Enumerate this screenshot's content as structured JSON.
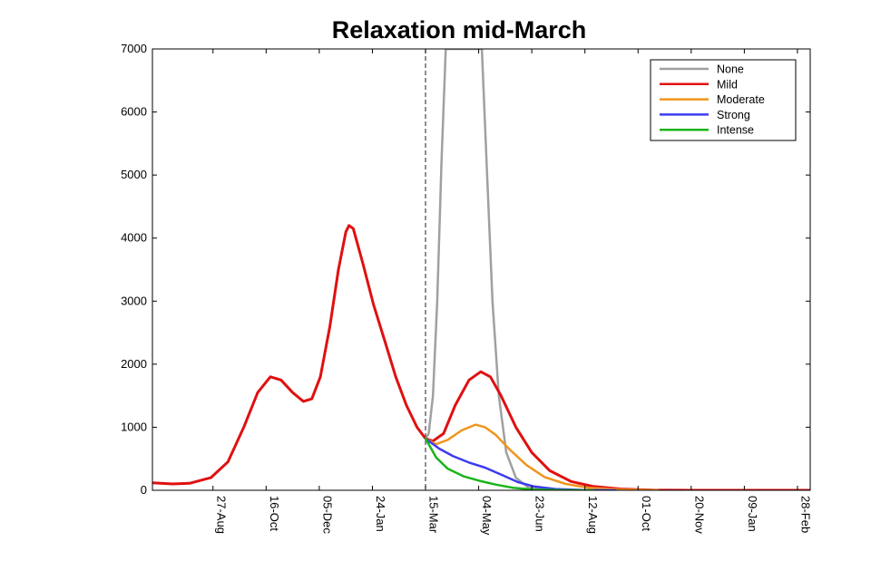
{
  "chart_data": {
    "type": "line",
    "title": "Relaxation mid-March",
    "xlabel": "",
    "ylabel": "",
    "ylim": [
      0,
      7000
    ],
    "yticks": [
      0,
      1000,
      2000,
      3000,
      4000,
      5000,
      6000,
      7000
    ],
    "xlim": [
      "2020-07-01",
      "2022-03-12"
    ],
    "xticks": [
      {
        "label": "27-Aug",
        "date": "2020-08-27"
      },
      {
        "label": "16-Oct",
        "date": "2020-10-16"
      },
      {
        "label": "05-Dec",
        "date": "2020-12-05"
      },
      {
        "label": "24-Jan",
        "date": "2021-01-24"
      },
      {
        "label": "15-Mar",
        "date": "2021-03-15"
      },
      {
        "label": "04-May",
        "date": "2021-05-04"
      },
      {
        "label": "23-Jun",
        "date": "2021-06-23"
      },
      {
        "label": "12-Aug",
        "date": "2021-08-12"
      },
      {
        "label": "01-Oct",
        "date": "2021-10-01"
      },
      {
        "label": "20-Nov",
        "date": "2021-11-20"
      },
      {
        "label": "09-Jan",
        "date": "2022-01-09"
      },
      {
        "label": "28-Feb",
        "date": "2022-02-28"
      }
    ],
    "vline": {
      "date": "2021-03-15",
      "style": "dashed"
    },
    "grid": false,
    "legend_position": "top-right",
    "series": [
      {
        "name": "None",
        "color": "#a0a0a0",
        "points": [
          [
            "2021-03-15",
            820
          ],
          [
            "2021-03-18",
            900
          ],
          [
            "2021-03-22",
            1500
          ],
          [
            "2021-03-26",
            3000
          ],
          [
            "2021-03-30",
            5200
          ],
          [
            "2021-04-03",
            7000
          ],
          [
            "2021-05-07",
            7000
          ],
          [
            "2021-05-12",
            5000
          ],
          [
            "2021-05-17",
            3000
          ],
          [
            "2021-05-23",
            1500
          ],
          [
            "2021-05-30",
            600
          ],
          [
            "2021-06-08",
            200
          ],
          [
            "2021-06-20",
            40
          ],
          [
            "2021-07-10",
            5
          ]
        ]
      },
      {
        "name": "Mild",
        "color": "#e01010",
        "points": [
          [
            "2020-07-01",
            120
          ],
          [
            "2020-07-20",
            100
          ],
          [
            "2020-08-05",
            110
          ],
          [
            "2020-08-25",
            200
          ],
          [
            "2020-09-10",
            450
          ],
          [
            "2020-09-25",
            1000
          ],
          [
            "2020-10-08",
            1550
          ],
          [
            "2020-10-20",
            1800
          ],
          [
            "2020-10-30",
            1750
          ],
          [
            "2020-11-10",
            1550
          ],
          [
            "2020-11-20",
            1410
          ],
          [
            "2020-11-28",
            1450
          ],
          [
            "2020-12-06",
            1800
          ],
          [
            "2020-12-15",
            2600
          ],
          [
            "2020-12-23",
            3500
          ],
          [
            "2020-12-30",
            4100
          ],
          [
            "2021-01-02",
            4200
          ],
          [
            "2021-01-06",
            4150
          ],
          [
            "2021-01-15",
            3600
          ],
          [
            "2021-01-25",
            2950
          ],
          [
            "2021-02-05",
            2350
          ],
          [
            "2021-02-15",
            1800
          ],
          [
            "2021-02-25",
            1350
          ],
          [
            "2021-03-07",
            1000
          ],
          [
            "2021-03-15",
            820
          ],
          [
            "2021-03-22",
            780
          ],
          [
            "2021-04-01",
            900
          ],
          [
            "2021-04-12",
            1350
          ],
          [
            "2021-04-25",
            1750
          ],
          [
            "2021-05-06",
            1880
          ],
          [
            "2021-05-15",
            1800
          ],
          [
            "2021-05-25",
            1500
          ],
          [
            "2021-06-08",
            1000
          ],
          [
            "2021-06-23",
            600
          ],
          [
            "2021-07-10",
            310
          ],
          [
            "2021-07-30",
            140
          ],
          [
            "2021-08-20",
            60
          ],
          [
            "2021-09-15",
            20
          ],
          [
            "2021-10-15",
            5
          ],
          [
            "2021-11-20",
            0
          ],
          [
            "2022-03-12",
            0
          ]
        ]
      },
      {
        "name": "Moderate",
        "color": "#f0951e",
        "points": [
          [
            "2021-03-15",
            820
          ],
          [
            "2021-03-25",
            730
          ],
          [
            "2021-04-05",
            800
          ],
          [
            "2021-04-18",
            950
          ],
          [
            "2021-05-01",
            1040
          ],
          [
            "2021-05-10",
            1000
          ],
          [
            "2021-05-20",
            880
          ],
          [
            "2021-06-02",
            650
          ],
          [
            "2021-06-18",
            400
          ],
          [
            "2021-07-05",
            210
          ],
          [
            "2021-07-25",
            100
          ],
          [
            "2021-08-15",
            40
          ],
          [
            "2021-09-15",
            10
          ],
          [
            "2021-10-20",
            0
          ]
        ]
      },
      {
        "name": "Strong",
        "color": "#3c3cf0",
        "points": [
          [
            "2021-03-15",
            820
          ],
          [
            "2021-03-28",
            660
          ],
          [
            "2021-04-10",
            540
          ],
          [
            "2021-04-25",
            440
          ],
          [
            "2021-05-10",
            360
          ],
          [
            "2021-05-25",
            250
          ],
          [
            "2021-06-10",
            130
          ],
          [
            "2021-06-25",
            60
          ],
          [
            "2021-07-15",
            20
          ],
          [
            "2021-08-10",
            5
          ],
          [
            "2021-09-10",
            0
          ]
        ]
      },
      {
        "name": "Intense",
        "color": "#1ab41a",
        "points": [
          [
            "2021-03-15",
            820
          ],
          [
            "2021-03-25",
            520
          ],
          [
            "2021-04-05",
            340
          ],
          [
            "2021-04-20",
            220
          ],
          [
            "2021-05-05",
            150
          ],
          [
            "2021-05-20",
            90
          ],
          [
            "2021-06-05",
            40
          ],
          [
            "2021-06-25",
            12
          ],
          [
            "2021-07-20",
            2
          ],
          [
            "2021-08-20",
            0
          ]
        ]
      }
    ]
  }
}
